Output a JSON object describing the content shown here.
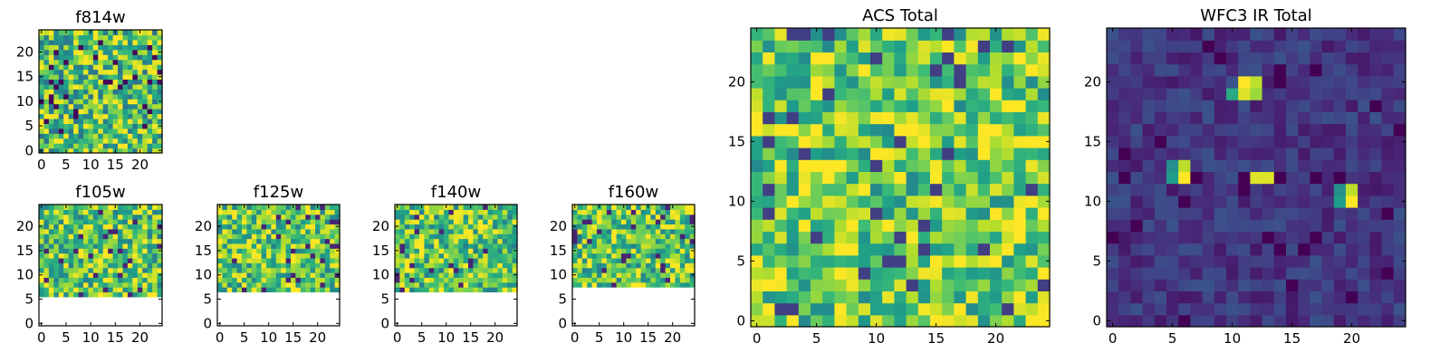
{
  "chart_data": [
    {
      "type": "heatmap",
      "title": "f814w",
      "x_ticks": [
        "0",
        "5",
        "10",
        "15",
        "20"
      ],
      "y_ticks": [
        "0",
        "5",
        "10",
        "15",
        "20"
      ],
      "xlim": [
        0,
        24
      ],
      "ylim": [
        0,
        24
      ],
      "grid_size": [
        25,
        25
      ],
      "colormap": "viridis",
      "valid_rows_from": 0,
      "mean_level": 0.72,
      "spread": 0.22,
      "hotspots": []
    },
    {
      "type": "heatmap",
      "title": "f105w",
      "x_ticks": [
        "0",
        "5",
        "10",
        "15",
        "20"
      ],
      "y_ticks": [
        "0",
        "5",
        "10",
        "15",
        "20"
      ],
      "xlim": [
        0,
        24
      ],
      "ylim": [
        0,
        24
      ],
      "grid_size": [
        25,
        25
      ],
      "colormap": "viridis",
      "valid_rows_from": 6,
      "mean_level": 0.74,
      "spread": 0.2,
      "hotspots": []
    },
    {
      "type": "heatmap",
      "title": "f125w",
      "x_ticks": [
        "0",
        "5",
        "10",
        "15",
        "20"
      ],
      "y_ticks": [
        "0",
        "5",
        "10",
        "15",
        "20"
      ],
      "xlim": [
        0,
        24
      ],
      "ylim": [
        0,
        24
      ],
      "grid_size": [
        25,
        25
      ],
      "colormap": "viridis",
      "valid_rows_from": 7,
      "mean_level": 0.74,
      "spread": 0.2,
      "hotspots": []
    },
    {
      "type": "heatmap",
      "title": "f140w",
      "x_ticks": [
        "0",
        "5",
        "10",
        "15",
        "20"
      ],
      "y_ticks": [
        "0",
        "5",
        "10",
        "15",
        "20"
      ],
      "xlim": [
        0,
        24
      ],
      "ylim": [
        0,
        24
      ],
      "grid_size": [
        25,
        25
      ],
      "colormap": "viridis",
      "valid_rows_from": 7,
      "mean_level": 0.74,
      "spread": 0.2,
      "hotspots": []
    },
    {
      "type": "heatmap",
      "title": "f160w",
      "x_ticks": [
        "0",
        "5",
        "10",
        "15",
        "20"
      ],
      "y_ticks": [
        "0",
        "5",
        "10",
        "15",
        "20"
      ],
      "xlim": [
        0,
        24
      ],
      "ylim": [
        0,
        24
      ],
      "grid_size": [
        25,
        25
      ],
      "colormap": "viridis",
      "valid_rows_from": 8,
      "mean_level": 0.74,
      "spread": 0.2,
      "hotspots": []
    },
    {
      "type": "heatmap",
      "title": "ACS Total",
      "x_ticks": [
        "0",
        "5",
        "10",
        "15",
        "20"
      ],
      "y_ticks": [
        "0",
        "5",
        "10",
        "15",
        "20"
      ],
      "xlim": [
        0,
        24
      ],
      "ylim": [
        0,
        24
      ],
      "grid_size": [
        25,
        25
      ],
      "colormap": "viridis",
      "valid_rows_from": 0,
      "mean_level": 0.76,
      "spread": 0.18,
      "hotspots": []
    },
    {
      "type": "heatmap",
      "title": "WFC3 IR Total",
      "x_ticks": [
        "0",
        "5",
        "10",
        "15",
        "20"
      ],
      "y_ticks": [
        "0",
        "5",
        "10",
        "15",
        "20"
      ],
      "xlim": [
        0,
        24
      ],
      "ylim": [
        0,
        24
      ],
      "grid_size": [
        25,
        25
      ],
      "colormap": "viridis",
      "valid_rows_from": 0,
      "mean_level": 0.16,
      "spread": 0.06,
      "hotspots": [
        {
          "x": 11,
          "y": 20,
          "value": 1.0
        },
        {
          "x": 12,
          "y": 20,
          "value": 0.9
        },
        {
          "x": 11,
          "y": 19,
          "value": 0.95
        },
        {
          "x": 10,
          "y": 19,
          "value": 0.6
        },
        {
          "x": 12,
          "y": 19,
          "value": 0.85
        },
        {
          "x": 5,
          "y": 12,
          "value": 0.55
        },
        {
          "x": 6,
          "y": 12,
          "value": 1.0
        },
        {
          "x": 6,
          "y": 13,
          "value": 0.9
        },
        {
          "x": 5,
          "y": 13,
          "value": 0.5
        },
        {
          "x": 12,
          "y": 12,
          "value": 0.95
        },
        {
          "x": 13,
          "y": 12,
          "value": 0.95
        },
        {
          "x": 19,
          "y": 10,
          "value": 0.55
        },
        {
          "x": 20,
          "y": 10,
          "value": 1.0
        },
        {
          "x": 19,
          "y": 11,
          "value": 0.5
        },
        {
          "x": 20,
          "y": 11,
          "value": 0.9
        }
      ]
    }
  ]
}
